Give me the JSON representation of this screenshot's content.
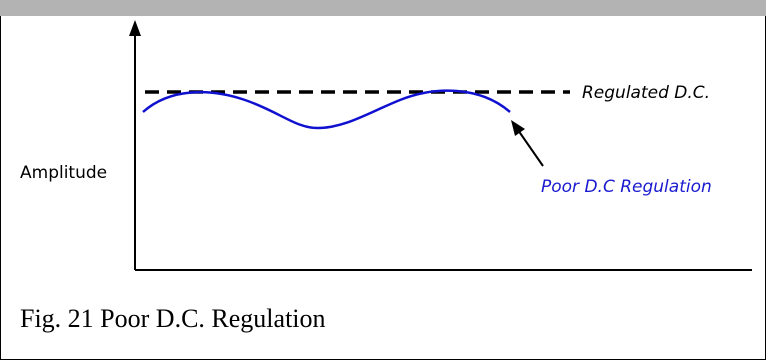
{
  "figure": {
    "caption": "Fig. 21 Poor D.C. Regulation",
    "y_axis_label": "Amplitude",
    "regulated_label": "Regulated D.C.",
    "poor_label": "Poor D.C Regulation",
    "colors": {
      "wave": "#1010d0",
      "poor_label": "#1a1ad0",
      "regulated_line": "#000000",
      "axes": "#000000",
      "top_band": "#b3b3b3"
    }
  }
}
